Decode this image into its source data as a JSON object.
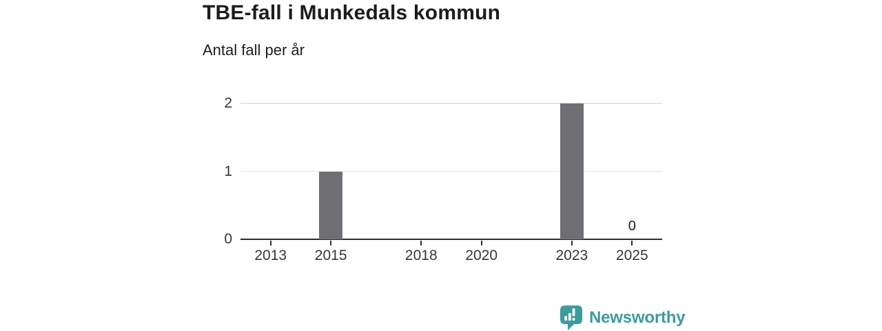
{
  "header": {
    "title": "TBE-fall i Munkedals kommun",
    "subtitle": "Antal fall per år"
  },
  "chart_data": {
    "type": "bar",
    "title": "TBE-fall i Munkedals kommun",
    "subtitle": "Antal fall per år",
    "categories": [
      2013,
      2014,
      2015,
      2016,
      2017,
      2018,
      2019,
      2020,
      2021,
      2022,
      2023,
      2024,
      2025
    ],
    "values": [
      0,
      0,
      1,
      0,
      0,
      0,
      0,
      0,
      0,
      0,
      2,
      0,
      0
    ],
    "xticks": [
      "2013",
      "2015",
      "2018",
      "2020",
      "2023",
      "2025"
    ],
    "xtick_years": [
      2013,
      2015,
      2018,
      2020,
      2023,
      2025
    ],
    "yticks": [
      "0",
      "1",
      "2"
    ],
    "ytick_values": [
      0,
      1,
      2
    ],
    "ylim": [
      0,
      2
    ],
    "x_range": [
      2012,
      2026
    ],
    "grid": "horizontal",
    "legend": "none",
    "annotations": [
      {
        "year": 2025,
        "label": "0"
      }
    ]
  },
  "colors": {
    "bar": "#6e6e73",
    "axis": "#2d2d2d",
    "gridline": "#e6e6e6",
    "text": "#1d1d1b",
    "tick_text": "#363636",
    "brand_teal": "#3a9c9e"
  },
  "footer": {
    "brand": "Newsworthy"
  }
}
